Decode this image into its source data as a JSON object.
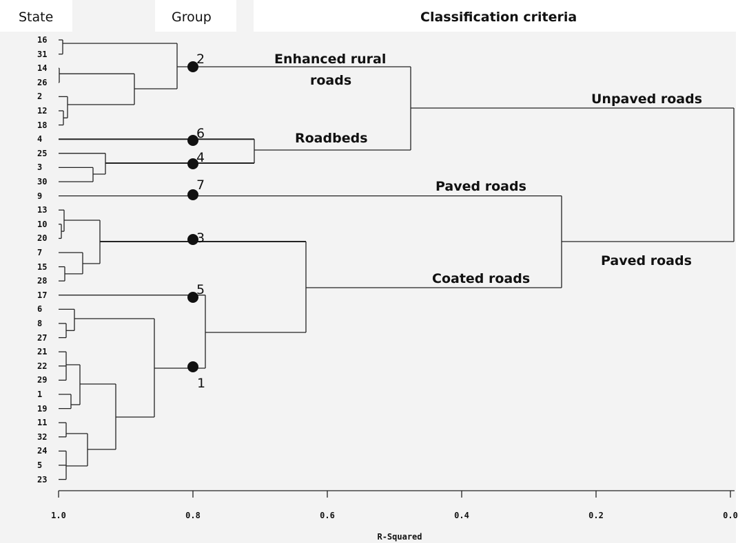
{
  "headers": {
    "state": "State",
    "group": "Group",
    "criteria": "Classification criteria"
  },
  "states": [
    "16",
    "31",
    "14",
    "26",
    "2",
    "12",
    "18",
    "4",
    "25",
    "3",
    "30",
    "9",
    "13",
    "10",
    "20",
    "7",
    "15",
    "28",
    "17",
    "6",
    "8",
    "27",
    "21",
    "22",
    "29",
    "1",
    "19",
    "11",
    "32",
    "24",
    "5",
    "23"
  ],
  "groups": [
    "2",
    "6",
    "4",
    "7",
    "3",
    "5",
    "1"
  ],
  "criteria_labels": {
    "enhanced_line1": "Enhanced rural",
    "enhanced_line2": "roads",
    "roadbeds": "Roadbeds",
    "unpaved": "Unpaved roads",
    "paved_upper": "Paved roads",
    "coated": "Coated roads",
    "paved_lower": "Paved roads"
  },
  "axis": {
    "title": "R-Squared",
    "ticks": [
      "1.0",
      "0.8",
      "0.6",
      "0.4",
      "0.2",
      "0.0"
    ],
    "range": [
      1.0,
      0.0
    ]
  }
}
